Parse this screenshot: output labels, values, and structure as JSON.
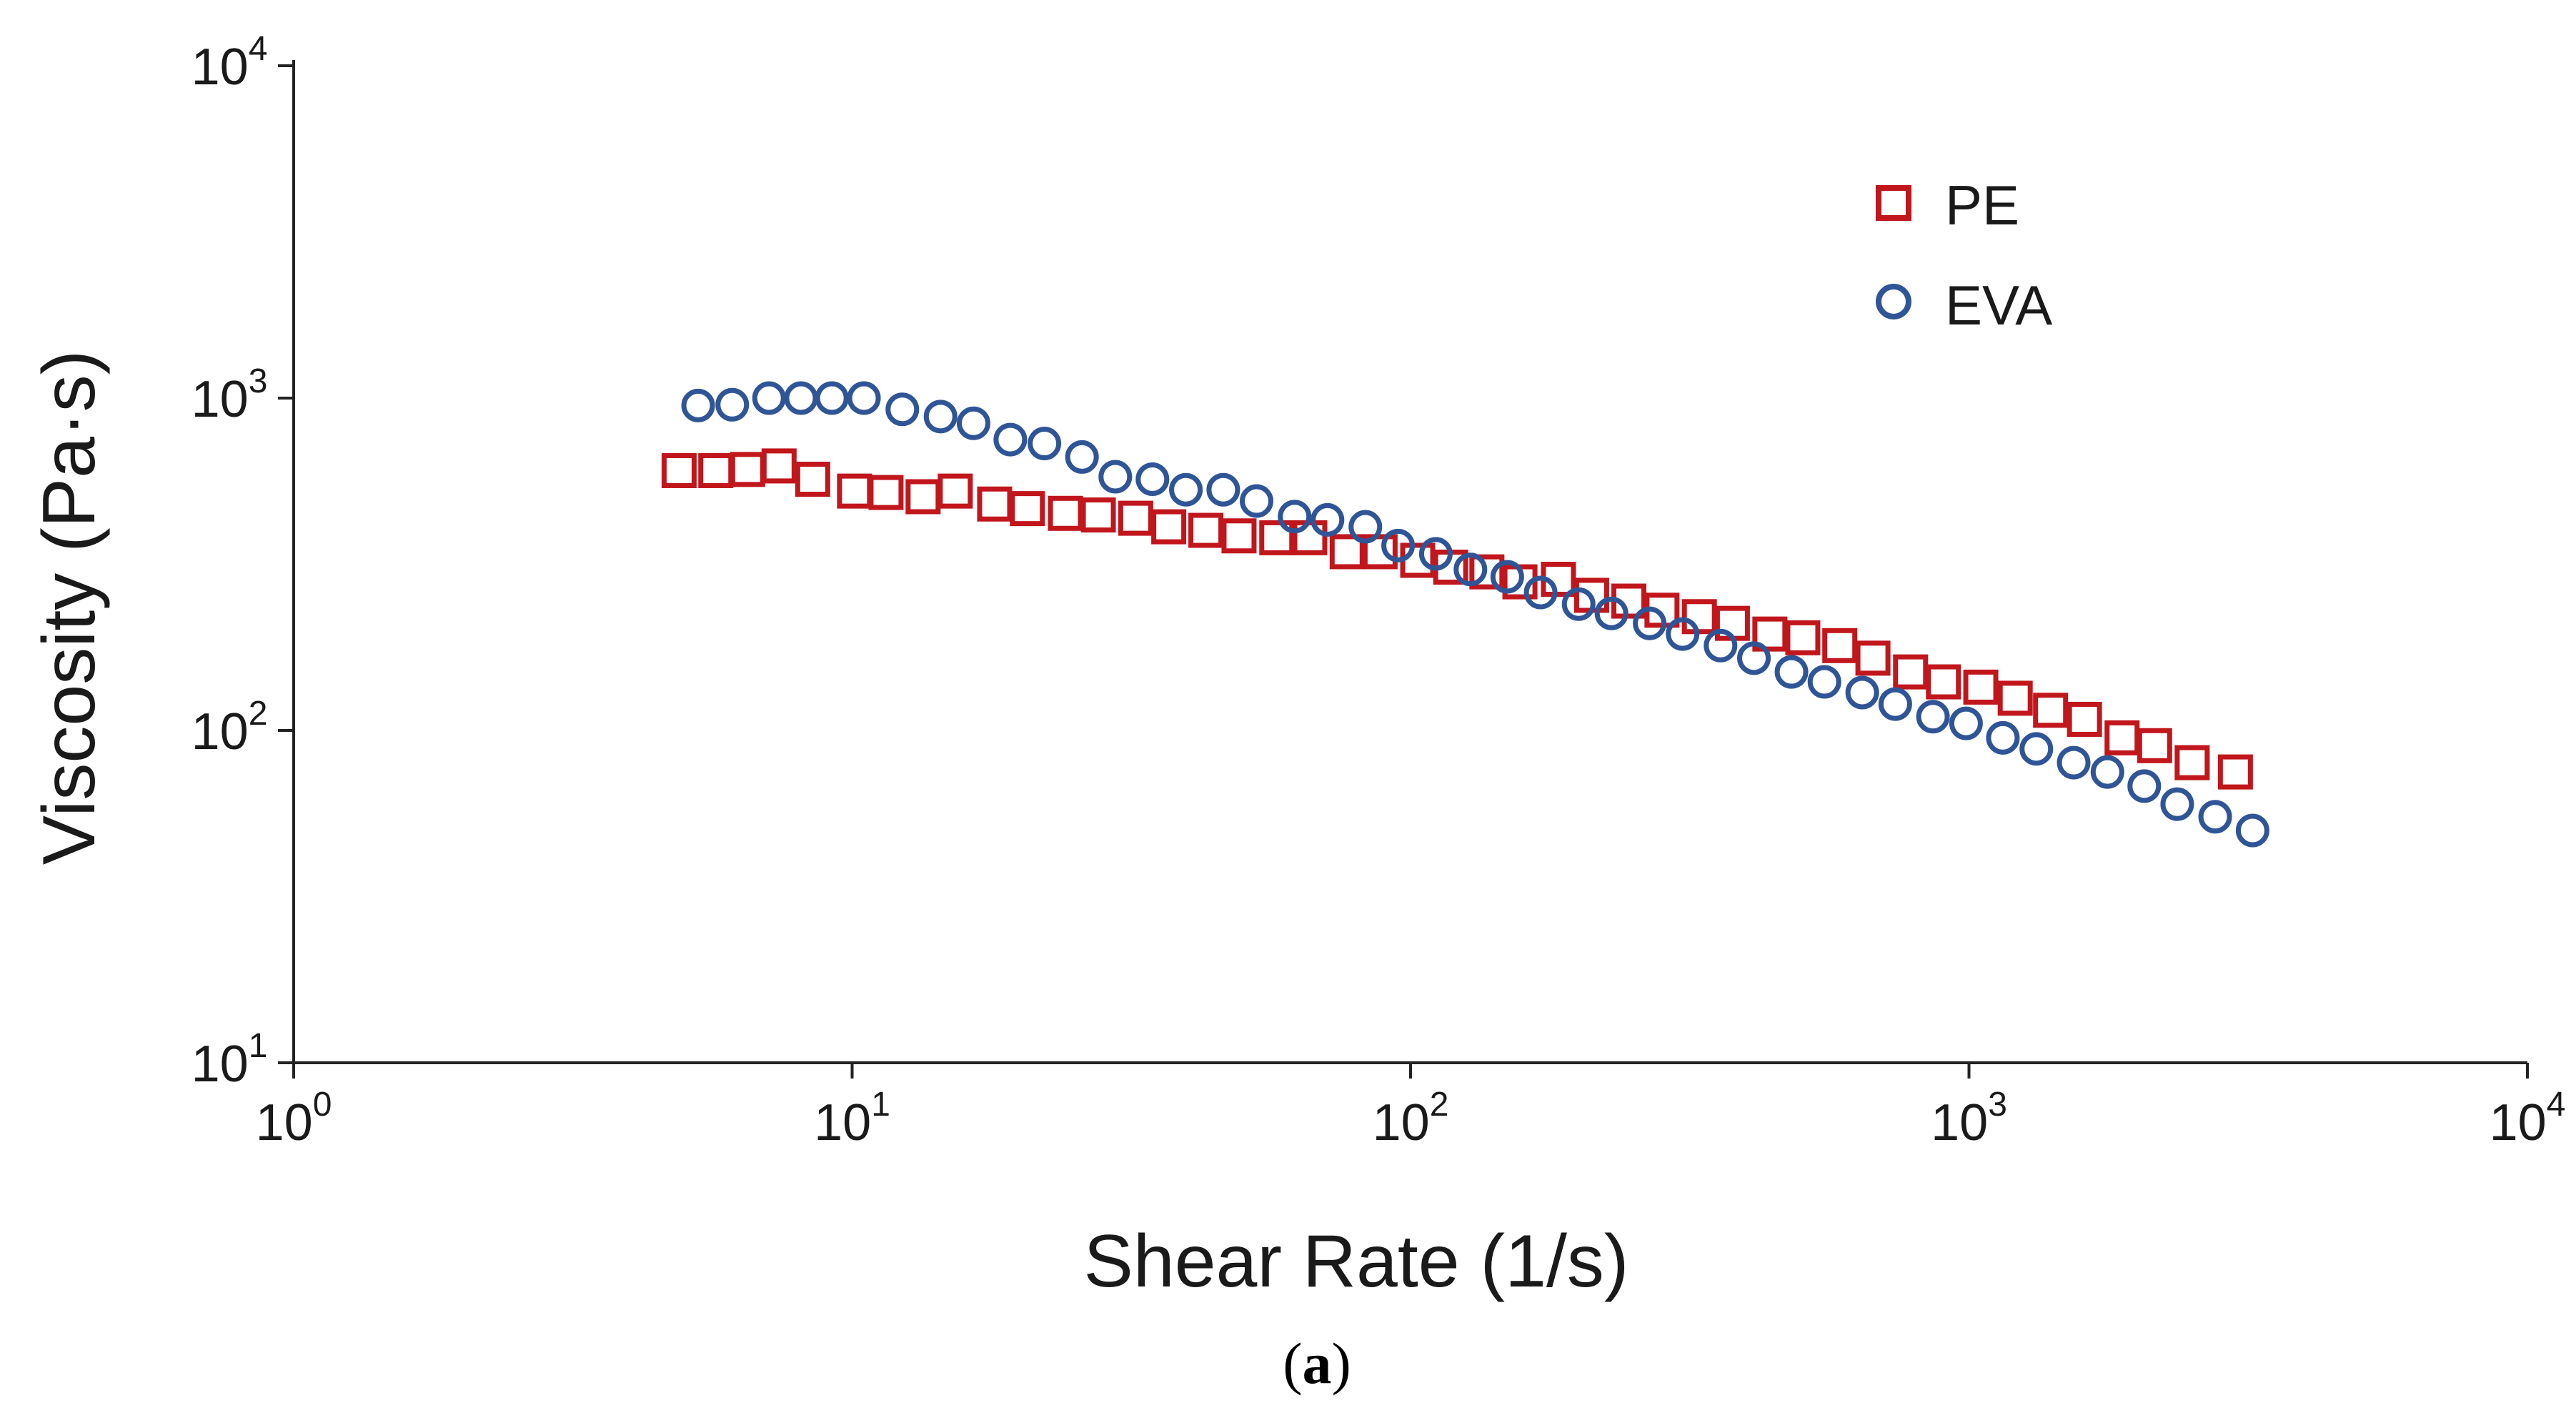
{
  "chart_data": {
    "type": "scatter",
    "xscale": "log",
    "yscale": "log",
    "xlim": [
      1,
      10000
    ],
    "ylim": [
      10,
      10000
    ],
    "x_ticks": [
      {
        "base": "10",
        "exp": "0",
        "value": 1
      },
      {
        "base": "10",
        "exp": "1",
        "value": 10
      },
      {
        "base": "10",
        "exp": "2",
        "value": 100
      },
      {
        "base": "10",
        "exp": "3",
        "value": 1000
      },
      {
        "base": "10",
        "exp": "4",
        "value": 10000
      }
    ],
    "y_ticks": [
      {
        "base": "10",
        "exp": "1",
        "value": 10
      },
      {
        "base": "10",
        "exp": "2",
        "value": 100
      },
      {
        "base": "10",
        "exp": "3",
        "value": 1000
      },
      {
        "base": "10",
        "exp": "4",
        "value": 10000
      }
    ],
    "xlabel": "Shear Rate (1/s)",
    "ylabel": "Viscosity (Pa·s)",
    "grid": false,
    "legend_position": "top-right",
    "series": [
      {
        "name": "PE",
        "marker": "square",
        "color": "#c0161c",
        "x": [
          4.9,
          5.7,
          6.5,
          7.4,
          8.5,
          10.1,
          11.5,
          13.4,
          15.3,
          18.0,
          20.6,
          24.1,
          27.6,
          32.2,
          36.9,
          43.0,
          49.3,
          57.6,
          66.0,
          77.0,
          88.2,
          103,
          118,
          137,
          157,
          184,
          211,
          246,
          282,
          329,
          377,
          440,
          504,
          587,
          673,
          786,
          900,
          1050,
          1210,
          1400,
          1610,
          1880,
          2150,
          2510,
          3000
        ],
        "y": [
          605,
          605,
          610,
          625,
          570,
          525,
          520,
          505,
          525,
          480,
          465,
          450,
          445,
          435,
          410,
          400,
          385,
          380,
          380,
          345,
          345,
          325,
          310,
          300,
          280,
          285,
          255,
          245,
          230,
          220,
          210,
          195,
          190,
          180,
          165,
          150,
          140,
          135,
          125,
          115,
          108,
          95,
          90,
          80,
          75
        ]
      },
      {
        "name": "EVA",
        "marker": "circle",
        "color": "#2f5597",
        "x": [
          5.3,
          6.1,
          7.1,
          8.1,
          9.2,
          10.5,
          12.3,
          14.4,
          16.5,
          19.2,
          22.1,
          25.8,
          29.6,
          34.5,
          39.6,
          46.2,
          53.0,
          62.0,
          71.0,
          83.0,
          95.0,
          111,
          128,
          149,
          171,
          200,
          229,
          268,
          307,
          359,
          412,
          481,
          551,
          644,
          738,
          862,
          988,
          1150,
          1320,
          1540,
          1770,
          2060,
          2360,
          2760,
          3220
        ],
        "y": [
          950,
          955,
          1000,
          1000,
          1000,
          1000,
          925,
          880,
          840,
          750,
          730,
          665,
          580,
          570,
          530,
          530,
          490,
          440,
          430,
          410,
          360,
          340,
          305,
          290,
          260,
          240,
          225,
          210,
          195,
          180,
          165,
          150,
          140,
          130,
          120,
          110,
          105,
          95,
          88,
          80,
          75,
          68,
          60,
          55,
          50
        ]
      }
    ]
  },
  "caption": {
    "open": "(",
    "letter": "a",
    "close": ")"
  }
}
